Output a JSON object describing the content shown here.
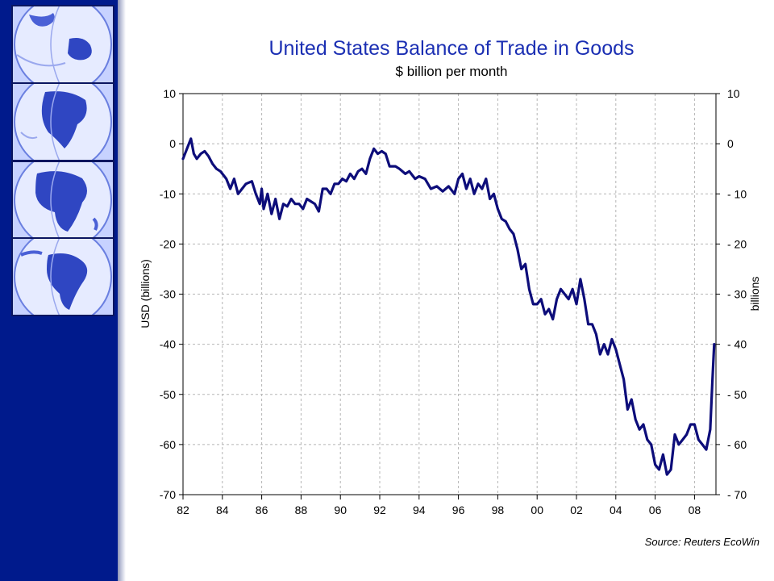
{
  "sidebar": {
    "tiles": [
      {
        "icon": "globe-asia-australia-icon"
      },
      {
        "icon": "globe-north-america-icon"
      },
      {
        "icon": "globe-africa-icon"
      },
      {
        "icon": "globe-south-america-icon"
      }
    ],
    "colors": {
      "background": "#001a8c",
      "tile_border": "#0b1660",
      "globe_light": "#dfe6ff",
      "globe_dark": "#3a52cc"
    }
  },
  "chart_data": {
    "type": "line",
    "title": "United States Balance of Trade in Goods",
    "subtitle": "$ billion per month",
    "ylabel": "USD (billions)",
    "ylabel_right": "billions",
    "source": "Source: Reuters EcoWin",
    "line_color": "#0d0d7a",
    "grid": true,
    "xlim": [
      1982,
      2009.1
    ],
    "ylim": [
      -70,
      10
    ],
    "x_ticks": [
      1982,
      1984,
      1986,
      1988,
      1990,
      1992,
      1994,
      1996,
      1998,
      2000,
      2002,
      2004,
      2006,
      2008
    ],
    "x_tick_labels": [
      "82",
      "84",
      "86",
      "88",
      "90",
      "92",
      "94",
      "96",
      "98",
      "00",
      "02",
      "04",
      "06",
      "08"
    ],
    "y_ticks": [
      10,
      0,
      -10,
      -20,
      -30,
      -40,
      -50,
      -60,
      -70
    ],
    "y_tick_labels": [
      "10",
      "0",
      "-10",
      "-20",
      "-30",
      "-40",
      "-50",
      "-60",
      "-70"
    ],
    "y_tick_labels_right": [
      "10",
      "0",
      "- 10",
      "- 20",
      "- 30",
      "- 40",
      "- 50",
      "- 60",
      "- 70"
    ],
    "series": [
      {
        "x": [
          1982.0,
          1982.2,
          1982.4,
          1982.55,
          1982.7,
          1982.9,
          1983.1,
          1983.3,
          1983.5,
          1983.7,
          1983.9,
          1984.2,
          1984.4,
          1984.6,
          1984.8,
          1985.0,
          1985.2,
          1985.5,
          1985.7,
          1985.9,
          1986.0,
          1986.1,
          1986.3,
          1986.5,
          1986.7,
          1986.9,
          1987.1,
          1987.3,
          1987.5,
          1987.7,
          1987.9,
          1988.1,
          1988.3,
          1988.5,
          1988.7,
          1988.9,
          1989.1,
          1989.3,
          1989.5,
          1989.7,
          1989.9,
          1990.1,
          1990.3,
          1990.5,
          1990.7,
          1990.9,
          1991.1,
          1991.3,
          1991.5,
          1991.7,
          1991.9,
          1992.1,
          1992.3,
          1992.5,
          1992.8,
          1993.0,
          1993.3,
          1993.5,
          1993.8,
          1994.0,
          1994.3,
          1994.6,
          1994.9,
          1995.2,
          1995.5,
          1995.8,
          1996.0,
          1996.2,
          1996.4,
          1996.6,
          1996.8,
          1997.0,
          1997.2,
          1997.4,
          1997.6,
          1997.8,
          1998.0,
          1998.2,
          1998.4,
          1998.6,
          1998.8,
          1999.0,
          1999.2,
          1999.4,
          1999.6,
          1999.8,
          2000.0,
          2000.2,
          2000.4,
          2000.6,
          2000.8,
          2001.0,
          2001.2,
          2001.4,
          2001.6,
          2001.8,
          2002.0,
          2002.2,
          2002.4,
          2002.6,
          2002.8,
          2003.0,
          2003.2,
          2003.4,
          2003.6,
          2003.8,
          2004.0,
          2004.2,
          2004.4,
          2004.6,
          2004.8,
          2005.0,
          2005.2,
          2005.4,
          2005.6,
          2005.8,
          2006.0,
          2006.2,
          2006.4,
          2006.6,
          2006.8,
          2007.0,
          2007.2,
          2007.4,
          2007.6,
          2007.8,
          2008.0,
          2008.2,
          2008.4,
          2008.6,
          2008.8,
          2008.9,
          2009.0
        ],
        "values": [
          -3,
          -1,
          1,
          -2,
          -3,
          -2,
          -1.5,
          -2.5,
          -4,
          -5,
          -5.5,
          -7,
          -9,
          -7,
          -10,
          -9,
          -8,
          -7.5,
          -10,
          -12,
          -9,
          -13,
          -10,
          -14,
          -11,
          -15,
          -12,
          -12.5,
          -11,
          -12,
          -12,
          -13,
          -11,
          -11.5,
          -12,
          -13.5,
          -9,
          -9,
          -10,
          -8,
          -8,
          -7,
          -7.5,
          -6,
          -7,
          -5.5,
          -5,
          -6,
          -3,
          -1,
          -2,
          -1.5,
          -2,
          -4.5,
          -4.5,
          -5,
          -6,
          -5.5,
          -7,
          -6.5,
          -7,
          -9,
          -8.5,
          -9.5,
          -8.5,
          -10,
          -7,
          -6,
          -9,
          -7,
          -10,
          -8,
          -9,
          -7,
          -11,
          -10,
          -13,
          -15,
          -15.5,
          -17,
          -18,
          -21,
          -25,
          -24,
          -29,
          -32,
          -32,
          -31,
          -34,
          -33,
          -35,
          -31,
          -29,
          -30,
          -31,
          -29,
          -32,
          -27,
          -31,
          -36,
          -36,
          -38,
          -42,
          -40,
          -42,
          -39,
          -41,
          -44,
          -47,
          -53,
          -51,
          -55,
          -57,
          -56,
          -59,
          -60,
          -64,
          -65,
          -62,
          -66,
          -65,
          -58,
          -60,
          -59,
          -58,
          -56,
          -56,
          -59,
          -60,
          -61,
          -57,
          -48,
          -40
        ]
      }
    ]
  }
}
